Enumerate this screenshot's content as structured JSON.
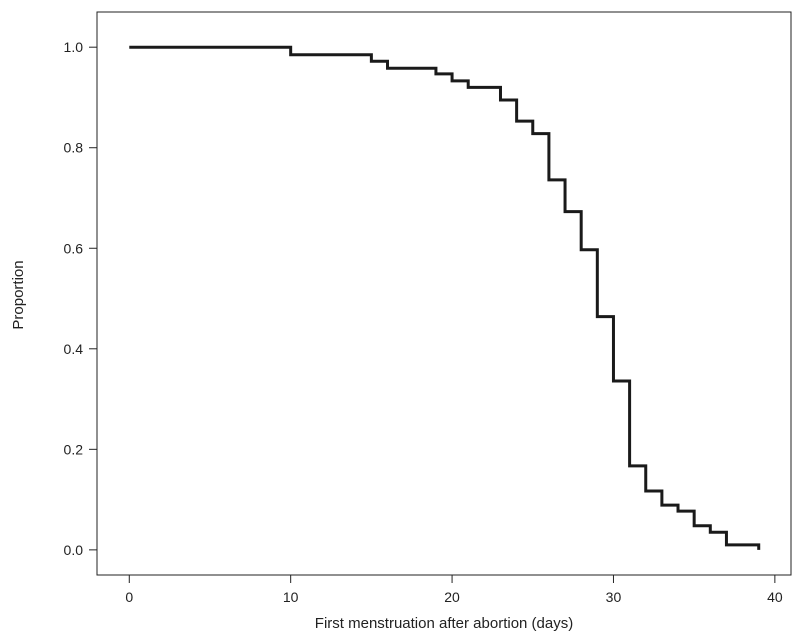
{
  "chart_data": {
    "type": "line",
    "title": "",
    "xlabel": "First menstruation after abortion (days)",
    "ylabel": "Proportion",
    "xlim": [
      -2,
      41
    ],
    "ylim": [
      -0.05,
      1.07
    ],
    "xticks": [
      0,
      10,
      20,
      30,
      40
    ],
    "yticks": [
      0.0,
      0.2,
      0.4,
      0.6,
      0.8,
      1.0
    ],
    "xtick_labels": [
      "0",
      "10",
      "20",
      "30",
      "40"
    ],
    "ytick_labels": [
      "0.0",
      "0.2",
      "0.4",
      "0.6",
      "0.8",
      "1.0"
    ],
    "grid": false,
    "series": [
      {
        "step": "post",
        "color": "#1a1a1a",
        "x": [
          0,
          10,
          15,
          16,
          19,
          20,
          21,
          23,
          24,
          25,
          26,
          27,
          28,
          29,
          30,
          31,
          32,
          33,
          34,
          35,
          36,
          37,
          39
        ],
        "y": [
          1.0,
          0.985,
          0.972,
          0.958,
          0.947,
          0.933,
          0.92,
          0.895,
          0.853,
          0.828,
          0.736,
          0.673,
          0.597,
          0.464,
          0.336,
          0.167,
          0.117,
          0.089,
          0.077,
          0.048,
          0.035,
          0.01,
          0.0
        ]
      }
    ]
  }
}
